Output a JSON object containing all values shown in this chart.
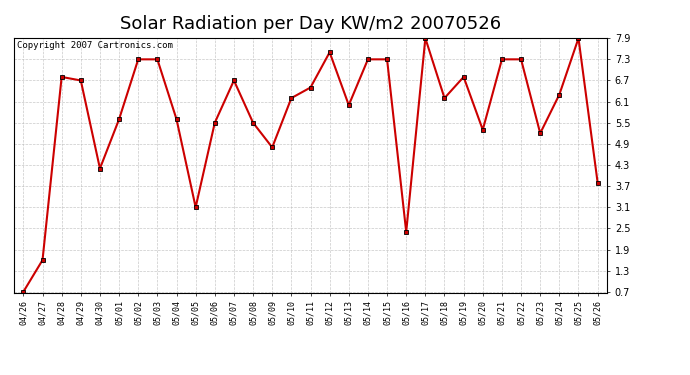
{
  "title": "Solar Radiation per Day KW/m2 20070526",
  "copyright": "Copyright 2007 Cartronics.com",
  "labels": [
    "04/26",
    "04/27",
    "04/28",
    "04/29",
    "04/30",
    "05/01",
    "05/02",
    "05/03",
    "05/04",
    "05/05",
    "05/06",
    "05/07",
    "05/08",
    "05/09",
    "05/10",
    "05/11",
    "05/12",
    "05/13",
    "05/14",
    "05/15",
    "05/16",
    "05/17",
    "05/18",
    "05/19",
    "05/20",
    "05/21",
    "05/22",
    "05/23",
    "05/24",
    "05/25",
    "05/26"
  ],
  "values": [
    0.7,
    1.6,
    6.8,
    6.7,
    4.2,
    5.6,
    7.3,
    7.3,
    5.6,
    3.1,
    5.5,
    6.7,
    5.5,
    4.8,
    6.2,
    6.5,
    7.5,
    6.0,
    7.3,
    7.3,
    2.4,
    7.9,
    6.2,
    6.8,
    5.3,
    7.3,
    7.3,
    5.2,
    6.3,
    7.9,
    3.8
  ],
  "line_color": "#cc0000",
  "marker": "s",
  "marker_size": 2.5,
  "marker_edge_color": "#000000",
  "ylim_min": 0.7,
  "ylim_max": 7.9,
  "yticks": [
    0.7,
    1.3,
    1.9,
    2.5,
    3.1,
    3.7,
    4.3,
    4.9,
    5.5,
    6.1,
    6.7,
    7.3,
    7.9
  ],
  "bg_color": "#ffffff",
  "plot_bg_color": "#ffffff",
  "grid_color": "#bbbbbb",
  "title_fontsize": 13,
  "copyright_fontsize": 6.5,
  "tick_fontsize": 6,
  "linewidth": 1.5
}
